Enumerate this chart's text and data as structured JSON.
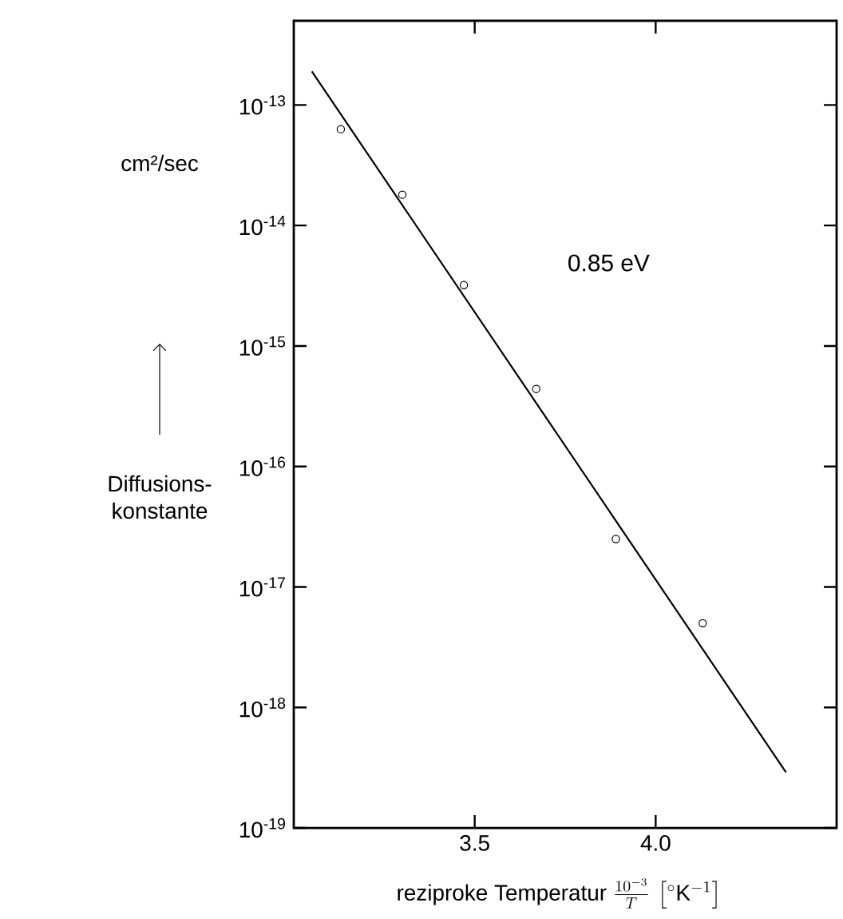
{
  "chart_data": {
    "type": "scatter",
    "xlabel": "\\text{reziproke Temperatur }\\frac{10^{-3}}{T}\\,\\left[{}^{\\circ}\\mathrm{K}^{-1}\\right]",
    "ylabel": "Diffusions-konstante",
    "annotations": [
      "0.85 eV",
      "cm²/sec"
    ],
    "series": [
      {
        "color": "#000000",
        "marker": "circle",
        "x": [
          3.13,
          3.3,
          3.47,
          3.67,
          3.89,
          4.13
        ],
        "values": [
          6.3e-14,
          1.8e-14,
          3.2e-15,
          4.4e-16,
          2.5e-17,
          5e-18
        ]
      },
      {
        "type": "line",
        "color": "#000000",
        "line_style": "solid",
        "x": [
          3.05,
          4.36
        ],
        "values": [
          1.9e-13,
          2.9e-19
        ]
      }
    ],
    "log": "y",
    "xlim": [
      3.0,
      4.5
    ],
    "ylim": [
      1e-19,
      5e-13
    ],
    "xticks": [
      {
        "value": 3.5,
        "label": "3.5"
      },
      {
        "value": 4.0,
        "label": "4.0"
      }
    ],
    "yticks": [
      {
        "value": 1e-19,
        "label": "10$^{-19}$"
      },
      {
        "value": 1e-18,
        "label": "10$^{-18}$"
      },
      {
        "value": 1e-17,
        "label": "10$^{-17}$"
      },
      {
        "value": 1e-16,
        "label": "10$^{-16}$"
      },
      {
        "value": 1e-15,
        "label": "10$^{-15}$"
      },
      {
        "value": 1e-14,
        "label": "10$^{-14}$"
      },
      {
        "value": 1e-13,
        "label": "10$^{-13}$"
      }
    ],
    "grid": false
  }
}
